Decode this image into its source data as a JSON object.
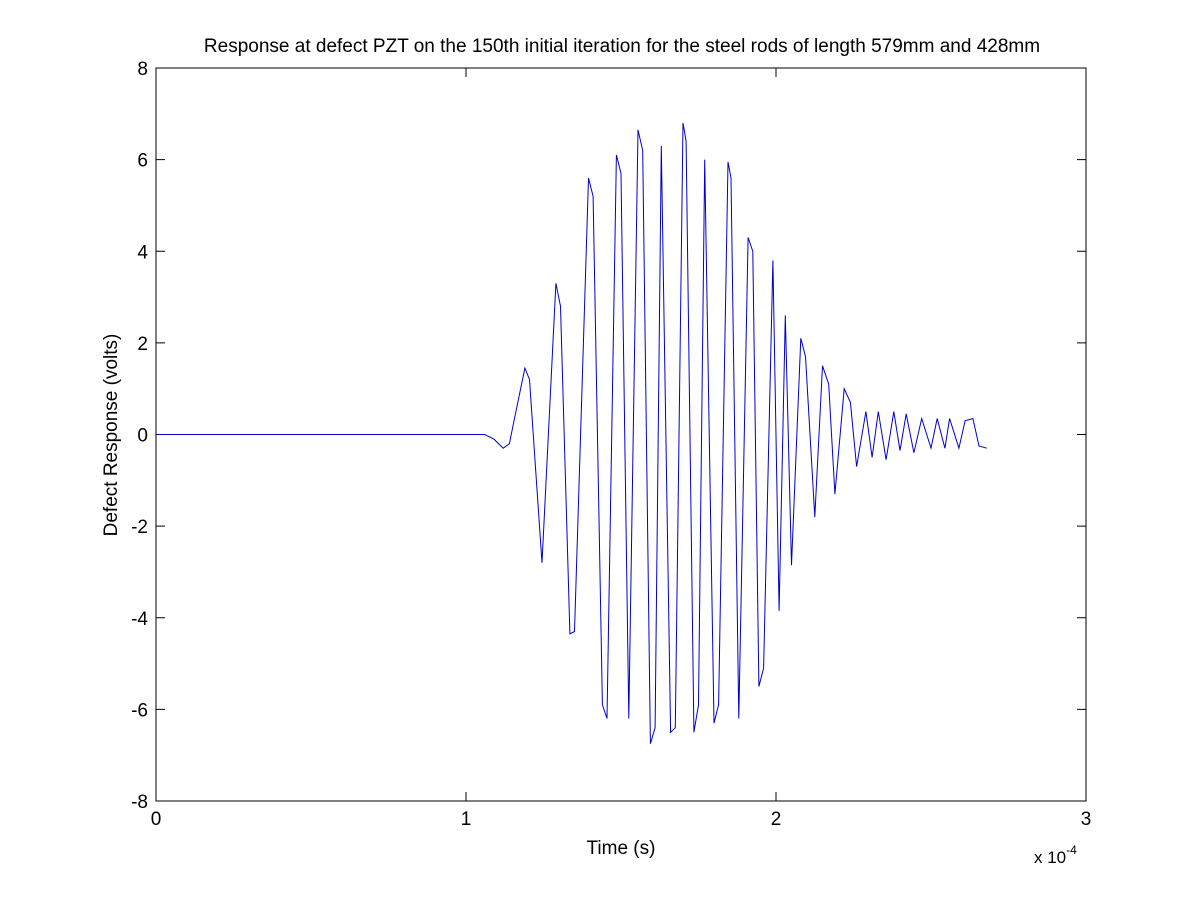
{
  "chart_data": {
    "type": "line",
    "title": "Response at defect PZT on the 150th initial iteration for the steel rods of length 579mm and 428mm",
    "xlabel": "Time (s)",
    "ylabel": "Defect Response (volts)",
    "x_multiplier_label": "x 10",
    "x_multiplier_exponent": "-4",
    "xlim": [
      0,
      3
    ],
    "ylim": [
      -8,
      8
    ],
    "x_ticks": [
      0,
      1,
      2,
      3
    ],
    "y_ticks": [
      -8,
      -6,
      -4,
      -2,
      0,
      2,
      4,
      6,
      8
    ],
    "x_tick_labels": [
      "0",
      "1",
      "2",
      "3"
    ],
    "y_tick_labels": [
      "-8",
      "-6",
      "-4",
      "-2",
      "0",
      "2",
      "4",
      "6",
      "8"
    ],
    "grid": false,
    "line_color": "#0000cc",
    "series": [
      {
        "x": [
          0,
          0.4,
          0.8,
          1.0,
          1.06,
          1.09,
          1.12,
          1.14,
          1.155,
          1.19,
          1.205,
          1.245,
          1.29,
          1.305,
          1.335,
          1.35,
          1.395,
          1.41,
          1.44,
          1.455,
          1.485,
          1.5,
          1.525,
          1.555,
          1.57,
          1.595,
          1.61,
          1.63,
          1.66,
          1.675,
          1.7,
          1.71,
          1.735,
          1.75,
          1.77,
          1.8,
          1.815,
          1.845,
          1.855,
          1.88,
          1.91,
          1.925,
          1.945,
          1.96,
          1.99,
          2.01,
          2.03,
          2.05,
          2.08,
          2.095,
          2.125,
          2.15,
          2.17,
          2.19,
          2.22,
          2.24,
          2.26,
          2.29,
          2.31,
          2.33,
          2.355,
          2.38,
          2.4,
          2.42,
          2.445,
          2.47,
          2.5,
          2.52,
          2.545,
          2.56,
          2.59,
          2.61,
          2.635,
          2.655,
          2.68
        ],
        "y": [
          0,
          0,
          0,
          0,
          0,
          -0.1,
          -0.3,
          -0.2,
          0.3,
          1.45,
          1.2,
          -2.8,
          3.3,
          2.8,
          -4.35,
          -4.3,
          5.6,
          5.2,
          -5.9,
          -6.2,
          6.1,
          5.7,
          -6.2,
          6.65,
          6.2,
          -6.75,
          -6.4,
          6.3,
          -6.5,
          -6.4,
          6.8,
          6.4,
          -6.5,
          -5.9,
          6.0,
          -6.3,
          -5.9,
          5.95,
          5.6,
          -6.2,
          4.3,
          4.0,
          -5.5,
          -5.1,
          3.8,
          -3.85,
          2.6,
          -2.85,
          2.1,
          1.7,
          -1.8,
          1.5,
          1.1,
          -1.3,
          1.0,
          0.7,
          -0.7,
          0.5,
          -0.5,
          0.5,
          -0.55,
          0.5,
          -0.35,
          0.45,
          -0.4,
          0.35,
          -0.3,
          0.35,
          -0.3,
          0.35,
          -0.3,
          0.3,
          0.35,
          -0.25,
          -0.3
        ]
      }
    ]
  }
}
